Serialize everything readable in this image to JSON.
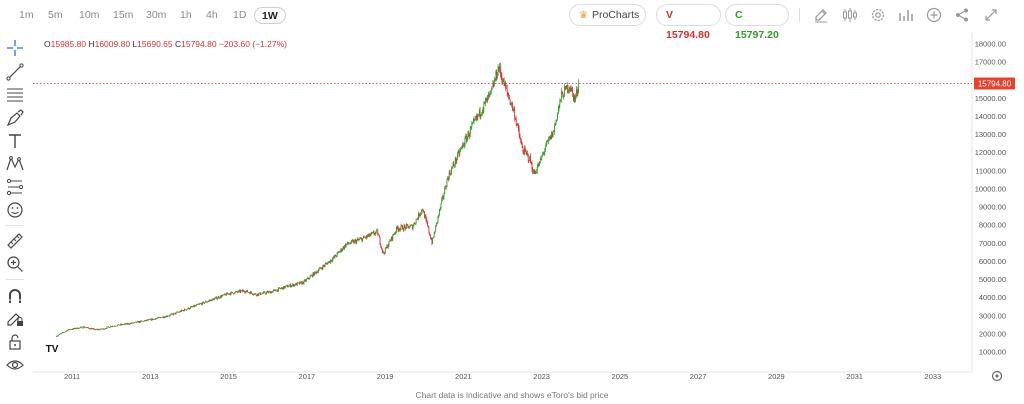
{
  "timeframes": [
    "1m",
    "5m",
    "10m",
    "15m",
    "30m",
    "1h",
    "4h",
    "1D",
    "1W"
  ],
  "active_timeframe": "1W",
  "procharts_label": "ProCharts",
  "sell_label": "V 15794.80",
  "buy_label": "C 15797.20",
  "ohlc": {
    "o_label": "O",
    "o": "15985.80",
    "h_label": "H",
    "h": "16009.80",
    "l_label": "L",
    "l": "15690.65",
    "c_label": "C",
    "c": "15794.80",
    "change": "−203.60 (−1.27%)"
  },
  "price_tag": "15794.80",
  "footer_text": "Chart data is indicative and shows eToro's bid price",
  "watermark": "TV",
  "colors": {
    "up": "#2f9d27",
    "down": "#d9302f",
    "accent": "#e8412e"
  },
  "toolbar_icons": [
    "crosshair-icon",
    "trendline-icon",
    "fib-icon",
    "brush-icon",
    "text-icon",
    "pattern-icon",
    "prediction-icon",
    "emoji-icon",
    "ruler-icon",
    "zoom-in-icon",
    "magnet-icon",
    "lock-drawing-icon",
    "lock-icon",
    "eye-icon"
  ],
  "chart_data": {
    "type": "line",
    "x_ticks": [
      "2011",
      "2013",
      "2015",
      "2017",
      "2019",
      "2021",
      "2023",
      "2025",
      "2027",
      "2029",
      "2031",
      "2033"
    ],
    "y_ticks": [
      "1000.00",
      "2000.00",
      "3000.00",
      "4000.00",
      "5000.00",
      "6000.00",
      "7000.00",
      "8000.00",
      "9000.00",
      "10000.00",
      "11000.00",
      "12000.00",
      "13000.00",
      "14000.00",
      "15000.00",
      "16000.00",
      "17000.00",
      "18000.00"
    ],
    "ylim": [
      1000,
      18000
    ],
    "xlim": [
      2010.0,
      2034.0
    ],
    "last_price": 15794.8,
    "x": [
      2010.6,
      2010.9,
      2011.3,
      2011.6,
      2011.8,
      2012.0,
      2012.5,
      2013.0,
      2013.5,
      2014.0,
      2014.5,
      2015.0,
      2015.4,
      2015.7,
      2016.1,
      2016.5,
      2016.9,
      2017.3,
      2017.7,
      2018.0,
      2018.4,
      2018.8,
      2018.95,
      2019.3,
      2019.7,
      2019.95,
      2020.2,
      2020.35,
      2020.6,
      2020.9,
      2021.2,
      2021.5,
      2021.7,
      2021.9,
      2022.0,
      2022.3,
      2022.5,
      2022.7,
      2022.8,
      2022.95,
      2023.1,
      2023.3,
      2023.5,
      2023.7,
      2023.85,
      2023.95
    ],
    "values": [
      1850,
      2200,
      2350,
      2200,
      2250,
      2400,
      2550,
      2750,
      3000,
      3400,
      3800,
      4200,
      4350,
      4150,
      4300,
      4600,
      4800,
      5500,
      6200,
      6900,
      7200,
      7600,
      6400,
      7800,
      7900,
      8900,
      7000,
      8400,
      10600,
      12000,
      13300,
      14500,
      15200,
      16700,
      16000,
      14200,
      12200,
      11600,
      10800,
      11400,
      12300,
      13100,
      15100,
      15700,
      14900,
      15800
    ],
    "grid": false
  }
}
